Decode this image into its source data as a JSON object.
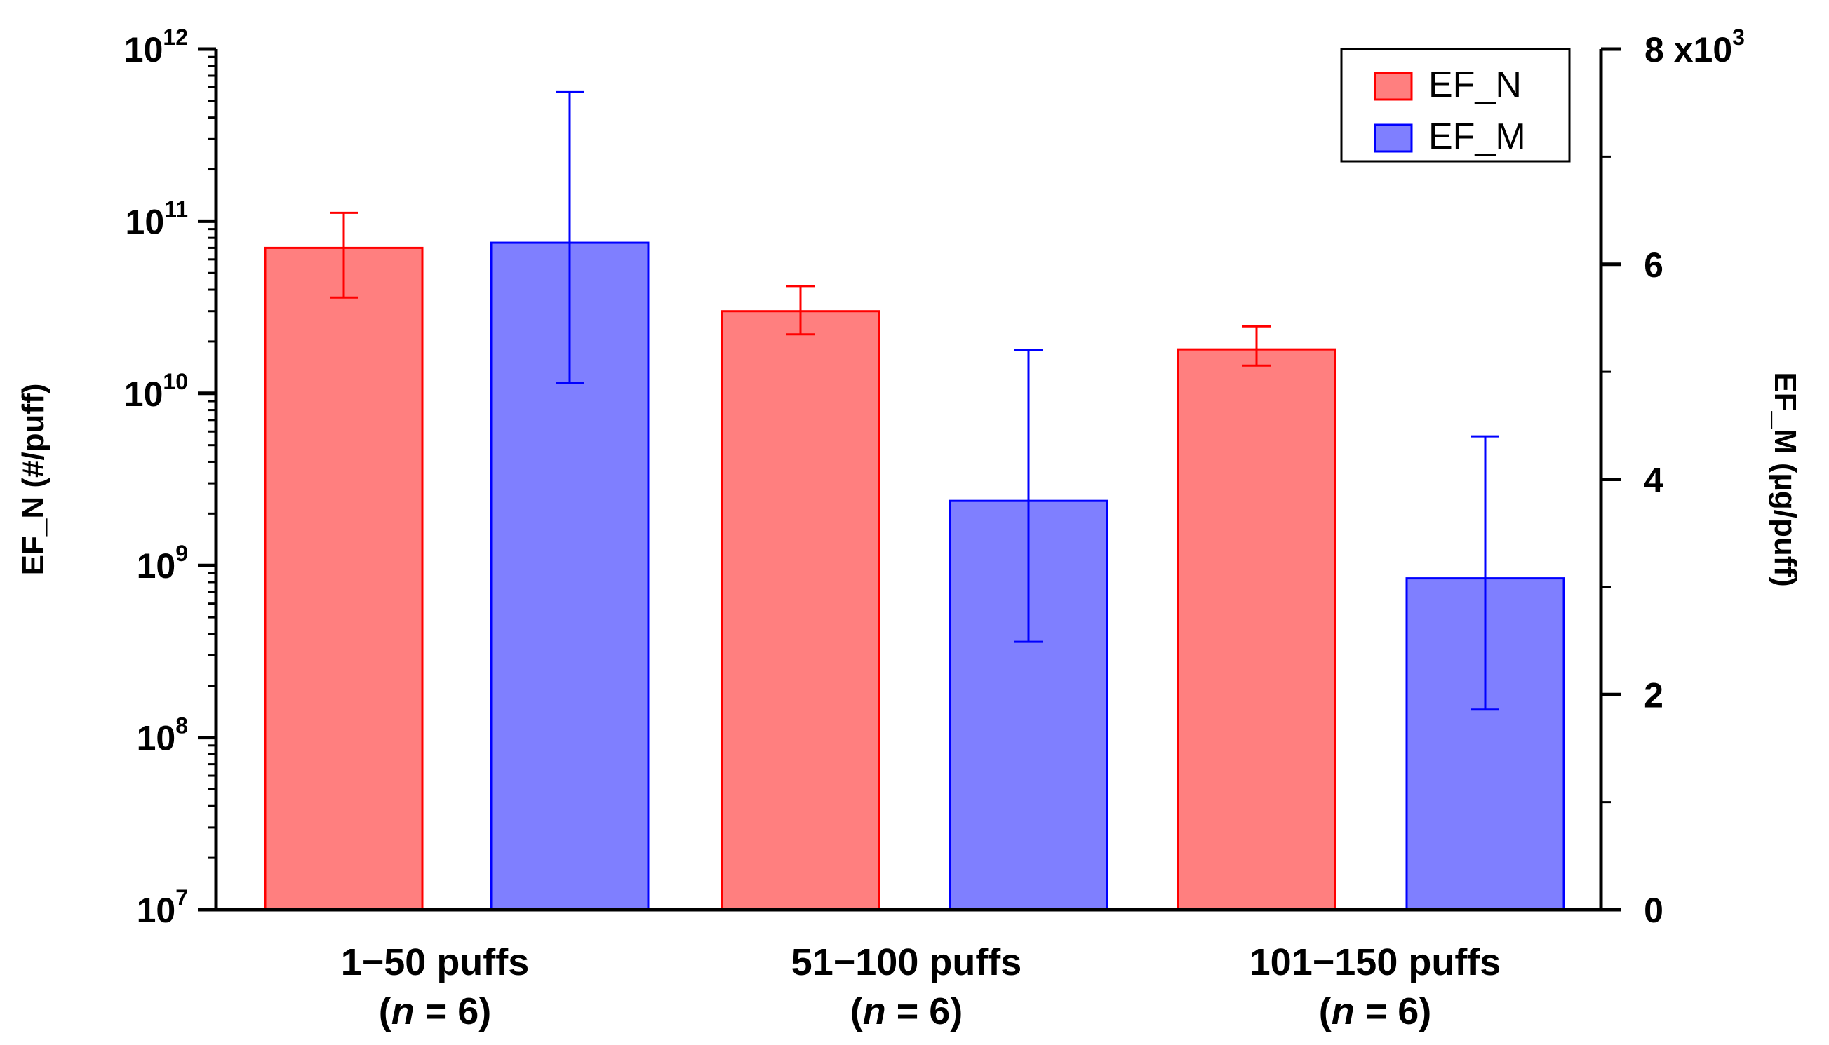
{
  "chart_data": {
    "type": "bar",
    "categories": [
      {
        "line1": "1−50 puffs",
        "n_prefix": "(",
        "n_var": "n",
        "n_suffix": " = 6)"
      },
      {
        "line1": "51−100 puffs",
        "n_prefix": "(",
        "n_var": "n",
        "n_suffix": " = 6)"
      },
      {
        "line1": "101−150 puffs",
        "n_prefix": "(",
        "n_var": "n",
        "n_suffix": " = 6)"
      }
    ],
    "series": [
      {
        "name": "EF_N",
        "axis": "left",
        "color": "#ff7f7f",
        "edge_color": "#ff0000",
        "values": [
          70000000000.0,
          30000000000.0,
          18000000000.0
        ],
        "err_low": [
          36000000000.0,
          22000000000.0,
          14500000000.0
        ],
        "err_high": [
          112000000000.0,
          42000000000.0,
          24500000000.0
        ]
      },
      {
        "name": "EF_M",
        "axis": "right",
        "color": "#7f7fff",
        "edge_color": "#0000ff",
        "values": [
          6200,
          3800,
          3080
        ],
        "err_low": [
          4900,
          2490,
          1860
        ],
        "err_high": [
          7600,
          5200,
          4400
        ]
      }
    ],
    "left_axis": {
      "title": "EF_N (#/puff)",
      "scale": "log",
      "range": [
        10000000.0,
        1000000000000.0
      ],
      "ticks": [
        {
          "value": 10000000.0,
          "base": "10",
          "exp": "7"
        },
        {
          "value": 100000000.0,
          "base": "10",
          "exp": "8"
        },
        {
          "value": 1000000000.0,
          "base": "10",
          "exp": "9"
        },
        {
          "value": 10000000000.0,
          "base": "10",
          "exp": "10"
        },
        {
          "value": 100000000000.0,
          "base": "10",
          "exp": "11"
        },
        {
          "value": 1000000000000.0,
          "base": "10",
          "exp": "12"
        }
      ]
    },
    "right_axis": {
      "title": "EF_M (µg/puff)",
      "scale": "linear",
      "range": [
        0,
        8000
      ],
      "ticks": [
        {
          "value": 0,
          "label": "0"
        },
        {
          "value": 2000,
          "label": "2"
        },
        {
          "value": 4000,
          "label": "4"
        },
        {
          "value": 6000,
          "label": "6"
        },
        {
          "value": 8000,
          "label": "8 x10",
          "exp": "3"
        }
      ]
    },
    "legend": {
      "position": "top-right",
      "entries": [
        "EF_N",
        "EF_M"
      ]
    },
    "grid": false
  }
}
